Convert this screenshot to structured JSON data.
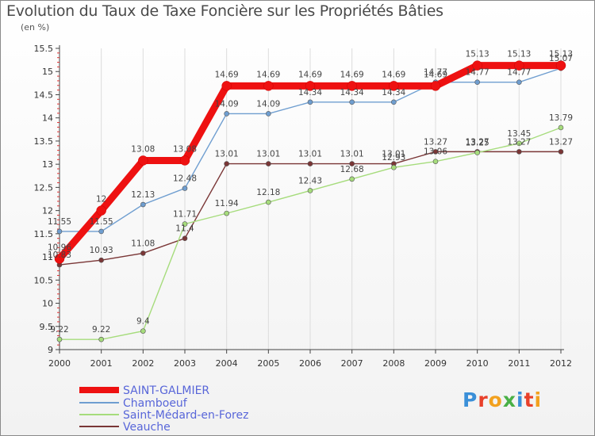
{
  "title": "Evolution du Taux de Taxe Foncière sur les Propriétés Bâties",
  "unit": "(en %)",
  "logo": "Proxiti",
  "chart_data": {
    "type": "line",
    "title": "Evolution du Taux de Taxe Foncière sur les Propriétés Bâties",
    "ylabel": "(en %)",
    "xlabel": "",
    "x": [
      "2000",
      "2001",
      "2002",
      "2003",
      "2004",
      "2005",
      "2006",
      "2007",
      "2008",
      "2009",
      "2010",
      "2011",
      "2012"
    ],
    "ylim": [
      9,
      15.5
    ],
    "yticks": [
      9,
      9.5,
      10,
      10.5,
      11,
      11.5,
      12,
      12.5,
      13,
      13.5,
      14,
      14.5,
      15,
      15.5
    ],
    "ytick_labels": [
      "9",
      "9.5",
      "10",
      "10.5",
      "11",
      "11.5",
      "12",
      "12.5",
      "13",
      "13.5",
      "14",
      "14.5",
      "15",
      "15.5"
    ],
    "grid": "vertical",
    "legend": "bottom-left",
    "series": [
      {
        "name": "SAINT-GALMIER",
        "color": "#ee1111",
        "values": [
          10.96,
          12.0,
          13.08,
          13.08,
          14.69,
          14.69,
          14.69,
          14.69,
          14.69,
          14.69,
          15.13,
          15.13,
          15.13
        ],
        "labels": [
          "10.96",
          "12",
          "13.08",
          "13.08",
          "14.69",
          "14.69",
          "14.69",
          "14.69",
          "14.69",
          "14.69",
          "15.13",
          "15.13",
          "15.13"
        ]
      },
      {
        "name": "Chamboeuf",
        "color": "#6f9ed0",
        "values": [
          11.55,
          11.55,
          12.13,
          12.48,
          14.09,
          14.09,
          14.34,
          14.34,
          14.34,
          14.77,
          14.77,
          14.77,
          15.07
        ],
        "labels": [
          "11.55",
          "11.55",
          "12.13",
          "12.48",
          "14.09",
          "14.09",
          "14.34",
          "14.34",
          "14.34",
          "14.77",
          "14.77",
          "14.77",
          "15.07"
        ]
      },
      {
        "name": "Saint-Médard-en-Forez",
        "color": "#a6dc7c",
        "values": [
          9.22,
          9.22,
          9.4,
          11.71,
          11.94,
          12.18,
          12.43,
          12.68,
          12.93,
          13.06,
          13.25,
          13.45,
          13.79
        ],
        "labels": [
          "9.22",
          "9.22",
          "9.4",
          "11.71",
          "11.94",
          "12.18",
          "12.43",
          "12.68",
          "12.93",
          "13.06",
          "13.25",
          "13.45",
          "13.79"
        ]
      },
      {
        "name": "Veauche",
        "color": "#7a3636",
        "values": [
          10.83,
          10.93,
          11.08,
          11.4,
          13.01,
          13.01,
          13.01,
          13.01,
          13.01,
          13.27,
          13.27,
          13.27,
          13.27
        ],
        "labels": [
          "10.83",
          "10.93",
          "11.08",
          "11.4",
          "13.01",
          "13.01",
          "13.01",
          "13.01",
          "13.01",
          "13.27",
          "13.27",
          "13.27",
          "13.27"
        ]
      }
    ]
  }
}
